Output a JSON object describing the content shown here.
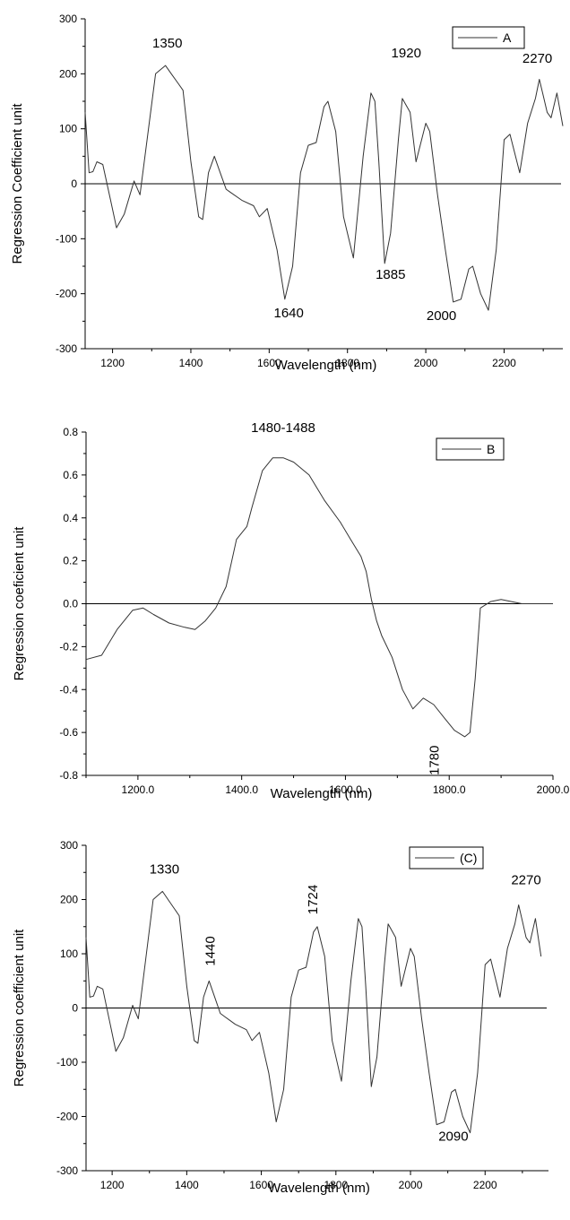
{
  "chart_data": [
    {
      "panel": "A",
      "type": "line",
      "xlabel": "Wavelength (nm)",
      "ylabel": "Regression Coefficient unit",
      "xlim": [
        1130,
        2350
      ],
      "ylim": [
        -300,
        300
      ],
      "xticks": [
        1200,
        1400,
        1600,
        1800,
        2000,
        2200
      ],
      "xtick_labels": [
        "1200",
        "1400",
        "1600",
        "1800",
        "2000",
        "2200"
      ],
      "yticks": [
        -300,
        -200,
        -100,
        0,
        100,
        200,
        300
      ],
      "ytick_labels": [
        "-300",
        "-200",
        "-100",
        "0",
        "100",
        "200",
        "300"
      ],
      "zero_line": true,
      "legend": {
        "label": "A",
        "position": "top-right"
      },
      "series": [
        {
          "x": [
            1130,
            1140,
            1150,
            1160,
            1175,
            1195,
            1210,
            1230,
            1255,
            1270,
            1290,
            1310,
            1335,
            1350,
            1365,
            1380,
            1400,
            1420,
            1430,
            1445,
            1460,
            1475,
            1490,
            1500,
            1530,
            1560,
            1575,
            1595,
            1620,
            1640,
            1660,
            1680,
            1700,
            1720,
            1740,
            1750,
            1770,
            1790,
            1815,
            1840,
            1860,
            1870,
            1880,
            1895,
            1910,
            1930,
            1940,
            1960,
            1975,
            2000,
            2010,
            2030,
            2050,
            2070,
            2090,
            2110,
            2120,
            2140,
            2160,
            2180,
            2200,
            2215,
            2240,
            2260,
            2280,
            2290,
            2300,
            2310,
            2320,
            2335,
            2350
          ],
          "y": [
            130,
            20,
            22,
            40,
            35,
            -30,
            -80,
            -55,
            5,
            -20,
            90,
            200,
            215,
            200,
            185,
            170,
            40,
            -60,
            -65,
            20,
            50,
            20,
            -10,
            -15,
            -30,
            -40,
            -60,
            -45,
            -120,
            -210,
            -150,
            20,
            70,
            75,
            140,
            150,
            95,
            -60,
            -135,
            50,
            165,
            150,
            40,
            -145,
            -90,
            80,
            155,
            130,
            40,
            110,
            95,
            -20,
            -120,
            -215,
            -210,
            -155,
            -150,
            -200,
            -230,
            -120,
            80,
            90,
            20,
            110,
            155,
            190,
            160,
            130,
            120,
            165,
            105
          ]
        }
      ],
      "annotations": [
        {
          "text": "1350",
          "x": 1340,
          "y": 248
        },
        {
          "text": "1920",
          "x": 1950,
          "y": 230
        },
        {
          "text": "2270",
          "x": 2285,
          "y": 220
        },
        {
          "text": "1640",
          "x": 1650,
          "y": -243
        },
        {
          "text": "1885",
          "x": 1910,
          "y": -173
        },
        {
          "text": "2000",
          "x": 2040,
          "y": -248
        }
      ]
    },
    {
      "panel": "B",
      "type": "line",
      "xlabel": "Wavelength (nm)",
      "ylabel": "Regression coeficient unit",
      "xlim": [
        1100,
        2000
      ],
      "ylim": [
        -0.8,
        0.8
      ],
      "xticks": [
        1200,
        1400,
        1600,
        1800,
        2000
      ],
      "xtick_labels": [
        "1200.0",
        "1400.0",
        "1600.0",
        "1800.0",
        "2000.0"
      ],
      "yticks": [
        -0.8,
        -0.6,
        -0.4,
        -0.2,
        0.0,
        0.2,
        0.4,
        0.6,
        0.8
      ],
      "ytick_labels": [
        "-0.8",
        "-0.6",
        "-0.4",
        "-0.2",
        "0.0",
        "0.2",
        "0.4",
        "0.6",
        "0.8"
      ],
      "zero_line": true,
      "legend": {
        "label": "B",
        "position": "top-right"
      },
      "series": [
        {
          "x": [
            1100,
            1130,
            1160,
            1190,
            1210,
            1230,
            1260,
            1290,
            1310,
            1330,
            1350,
            1370,
            1390,
            1410,
            1420,
            1440,
            1460,
            1480,
            1500,
            1530,
            1560,
            1590,
            1610,
            1630,
            1640,
            1650,
            1660,
            1670,
            1690,
            1710,
            1730,
            1750,
            1770,
            1790,
            1810,
            1830,
            1840,
            1850,
            1860,
            1880,
            1900,
            1920,
            1940,
            2000
          ],
          "y": [
            -0.26,
            -0.24,
            -0.12,
            -0.03,
            -0.02,
            -0.05,
            -0.09,
            -0.11,
            -0.12,
            -0.08,
            -0.02,
            0.08,
            0.3,
            0.36,
            0.45,
            0.62,
            0.68,
            0.68,
            0.66,
            0.6,
            0.48,
            0.38,
            0.3,
            0.22,
            0.15,
            0.02,
            -0.08,
            -0.15,
            -0.25,
            -0.4,
            -0.49,
            -0.44,
            -0.47,
            -0.53,
            -0.59,
            -0.62,
            -0.6,
            -0.35,
            -0.02,
            0.01,
            0.02,
            0.01,
            0.0,
            0.0
          ]
        }
      ],
      "annotations": [
        {
          "text": "1480-1488",
          "x": 1480,
          "y": 0.8
        },
        {
          "text": "1780",
          "rotated": true,
          "x": 1780,
          "y": -0.73
        }
      ]
    },
    {
      "panel": "C",
      "type": "line",
      "xlabel": "Wavelength (nm)",
      "ylabel": "Regression coefficient unit",
      "xlim": [
        1130,
        2370
      ],
      "ylim": [
        -300,
        300
      ],
      "xticks": [
        1200,
        1400,
        1600,
        1800,
        2000,
        2200
      ],
      "xtick_labels": [
        "1200",
        "1400",
        "1600",
        "1800",
        "2000",
        "2200"
      ],
      "yticks": [
        -300,
        -200,
        -100,
        0,
        100,
        200,
        300
      ],
      "ytick_labels": [
        "-300",
        "-200",
        "-100",
        "0",
        "100",
        "200",
        "300"
      ],
      "zero_line": true,
      "legend": {
        "label": "(C)",
        "position": "top-right"
      },
      "series": [
        {
          "x": [
            1130,
            1140,
            1150,
            1160,
            1175,
            1195,
            1210,
            1230,
            1255,
            1270,
            1290,
            1310,
            1335,
            1350,
            1365,
            1380,
            1400,
            1420,
            1430,
            1445,
            1460,
            1475,
            1490,
            1500,
            1530,
            1560,
            1575,
            1595,
            1620,
            1640,
            1660,
            1680,
            1700,
            1720,
            1740,
            1750,
            1770,
            1790,
            1815,
            1840,
            1860,
            1870,
            1880,
            1895,
            1910,
            1930,
            1940,
            1960,
            1975,
            2000,
            2010,
            2030,
            2050,
            2070,
            2090,
            2110,
            2120,
            2140,
            2160,
            2180,
            2200,
            2215,
            2240,
            2260,
            2280,
            2290,
            2300,
            2310,
            2320,
            2335,
            2350
          ],
          "y": [
            130,
            20,
            22,
            40,
            35,
            -30,
            -80,
            -55,
            5,
            -20,
            90,
            200,
            215,
            200,
            185,
            170,
            40,
            -60,
            -65,
            20,
            50,
            20,
            -10,
            -15,
            -30,
            -40,
            -60,
            -45,
            -120,
            -210,
            -150,
            20,
            70,
            75,
            140,
            150,
            95,
            -60,
            -135,
            50,
            165,
            150,
            40,
            -145,
            -90,
            80,
            155,
            130,
            40,
            110,
            95,
            -20,
            -120,
            -215,
            -210,
            -155,
            -150,
            -200,
            -230,
            -120,
            80,
            90,
            20,
            110,
            155,
            190,
            160,
            130,
            120,
            165,
            95
          ]
        }
      ],
      "annotations": [
        {
          "text": "1330",
          "x": 1340,
          "y": 248
        },
        {
          "text": "1440",
          "rotated": true,
          "x": 1475,
          "y": 105
        },
        {
          "text": "1724",
          "rotated": true,
          "x": 1750,
          "y": 200
        },
        {
          "text": "2270",
          "x": 2310,
          "y": 228
        },
        {
          "text": "2090",
          "x": 2115,
          "y": -245
        }
      ]
    }
  ]
}
